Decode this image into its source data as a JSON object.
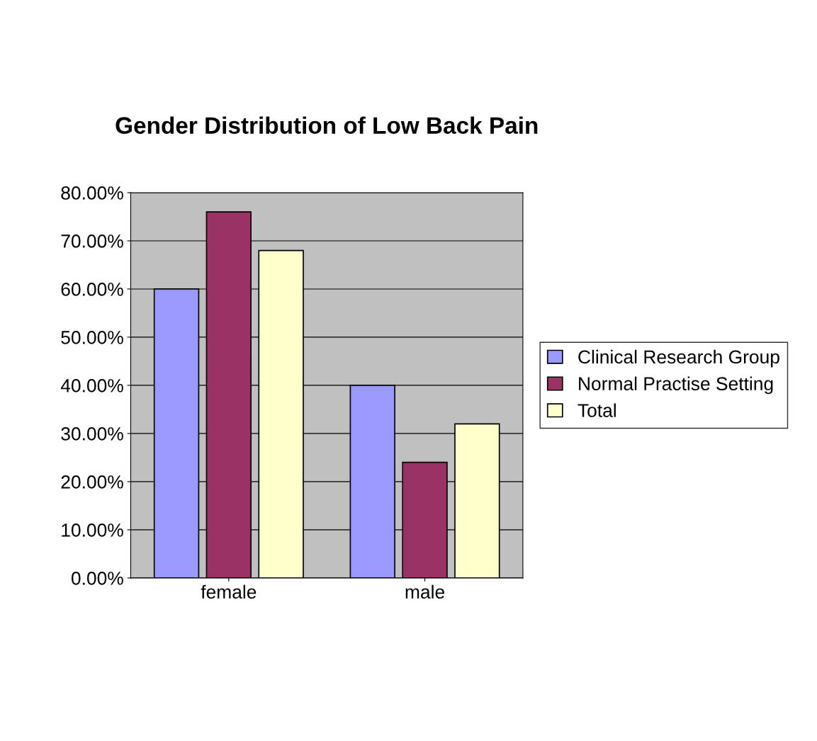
{
  "chart_data": {
    "type": "bar",
    "title": "Gender Distribution of Low Back Pain",
    "categories": [
      "female",
      "male"
    ],
    "series": [
      {
        "name": "Clinical Research Group",
        "color": "#9999ff",
        "values": [
          0.6,
          0.4
        ]
      },
      {
        "name": "Normal Practise Setting",
        "color": "#993366",
        "values": [
          0.76,
          0.24
        ]
      },
      {
        "name": "Total",
        "color": "#ffffcc",
        "values": [
          0.68,
          0.32
        ]
      }
    ],
    "ylim": [
      0,
      0.8
    ],
    "yticks": [
      {
        "value": 0,
        "label": "0.00%"
      },
      {
        "value": 0.1,
        "label": "10.00%"
      },
      {
        "value": 0.2,
        "label": "20.00%"
      },
      {
        "value": 0.3,
        "label": "30.00%"
      },
      {
        "value": 0.4,
        "label": "40.00%"
      },
      {
        "value": 0.5,
        "label": "50.00%"
      },
      {
        "value": 0.6,
        "label": "60.00%"
      },
      {
        "value": 0.7,
        "label": "70.00%"
      },
      {
        "value": 0.8,
        "label": "80.00%"
      }
    ],
    "grid": "y",
    "legend": "right"
  }
}
